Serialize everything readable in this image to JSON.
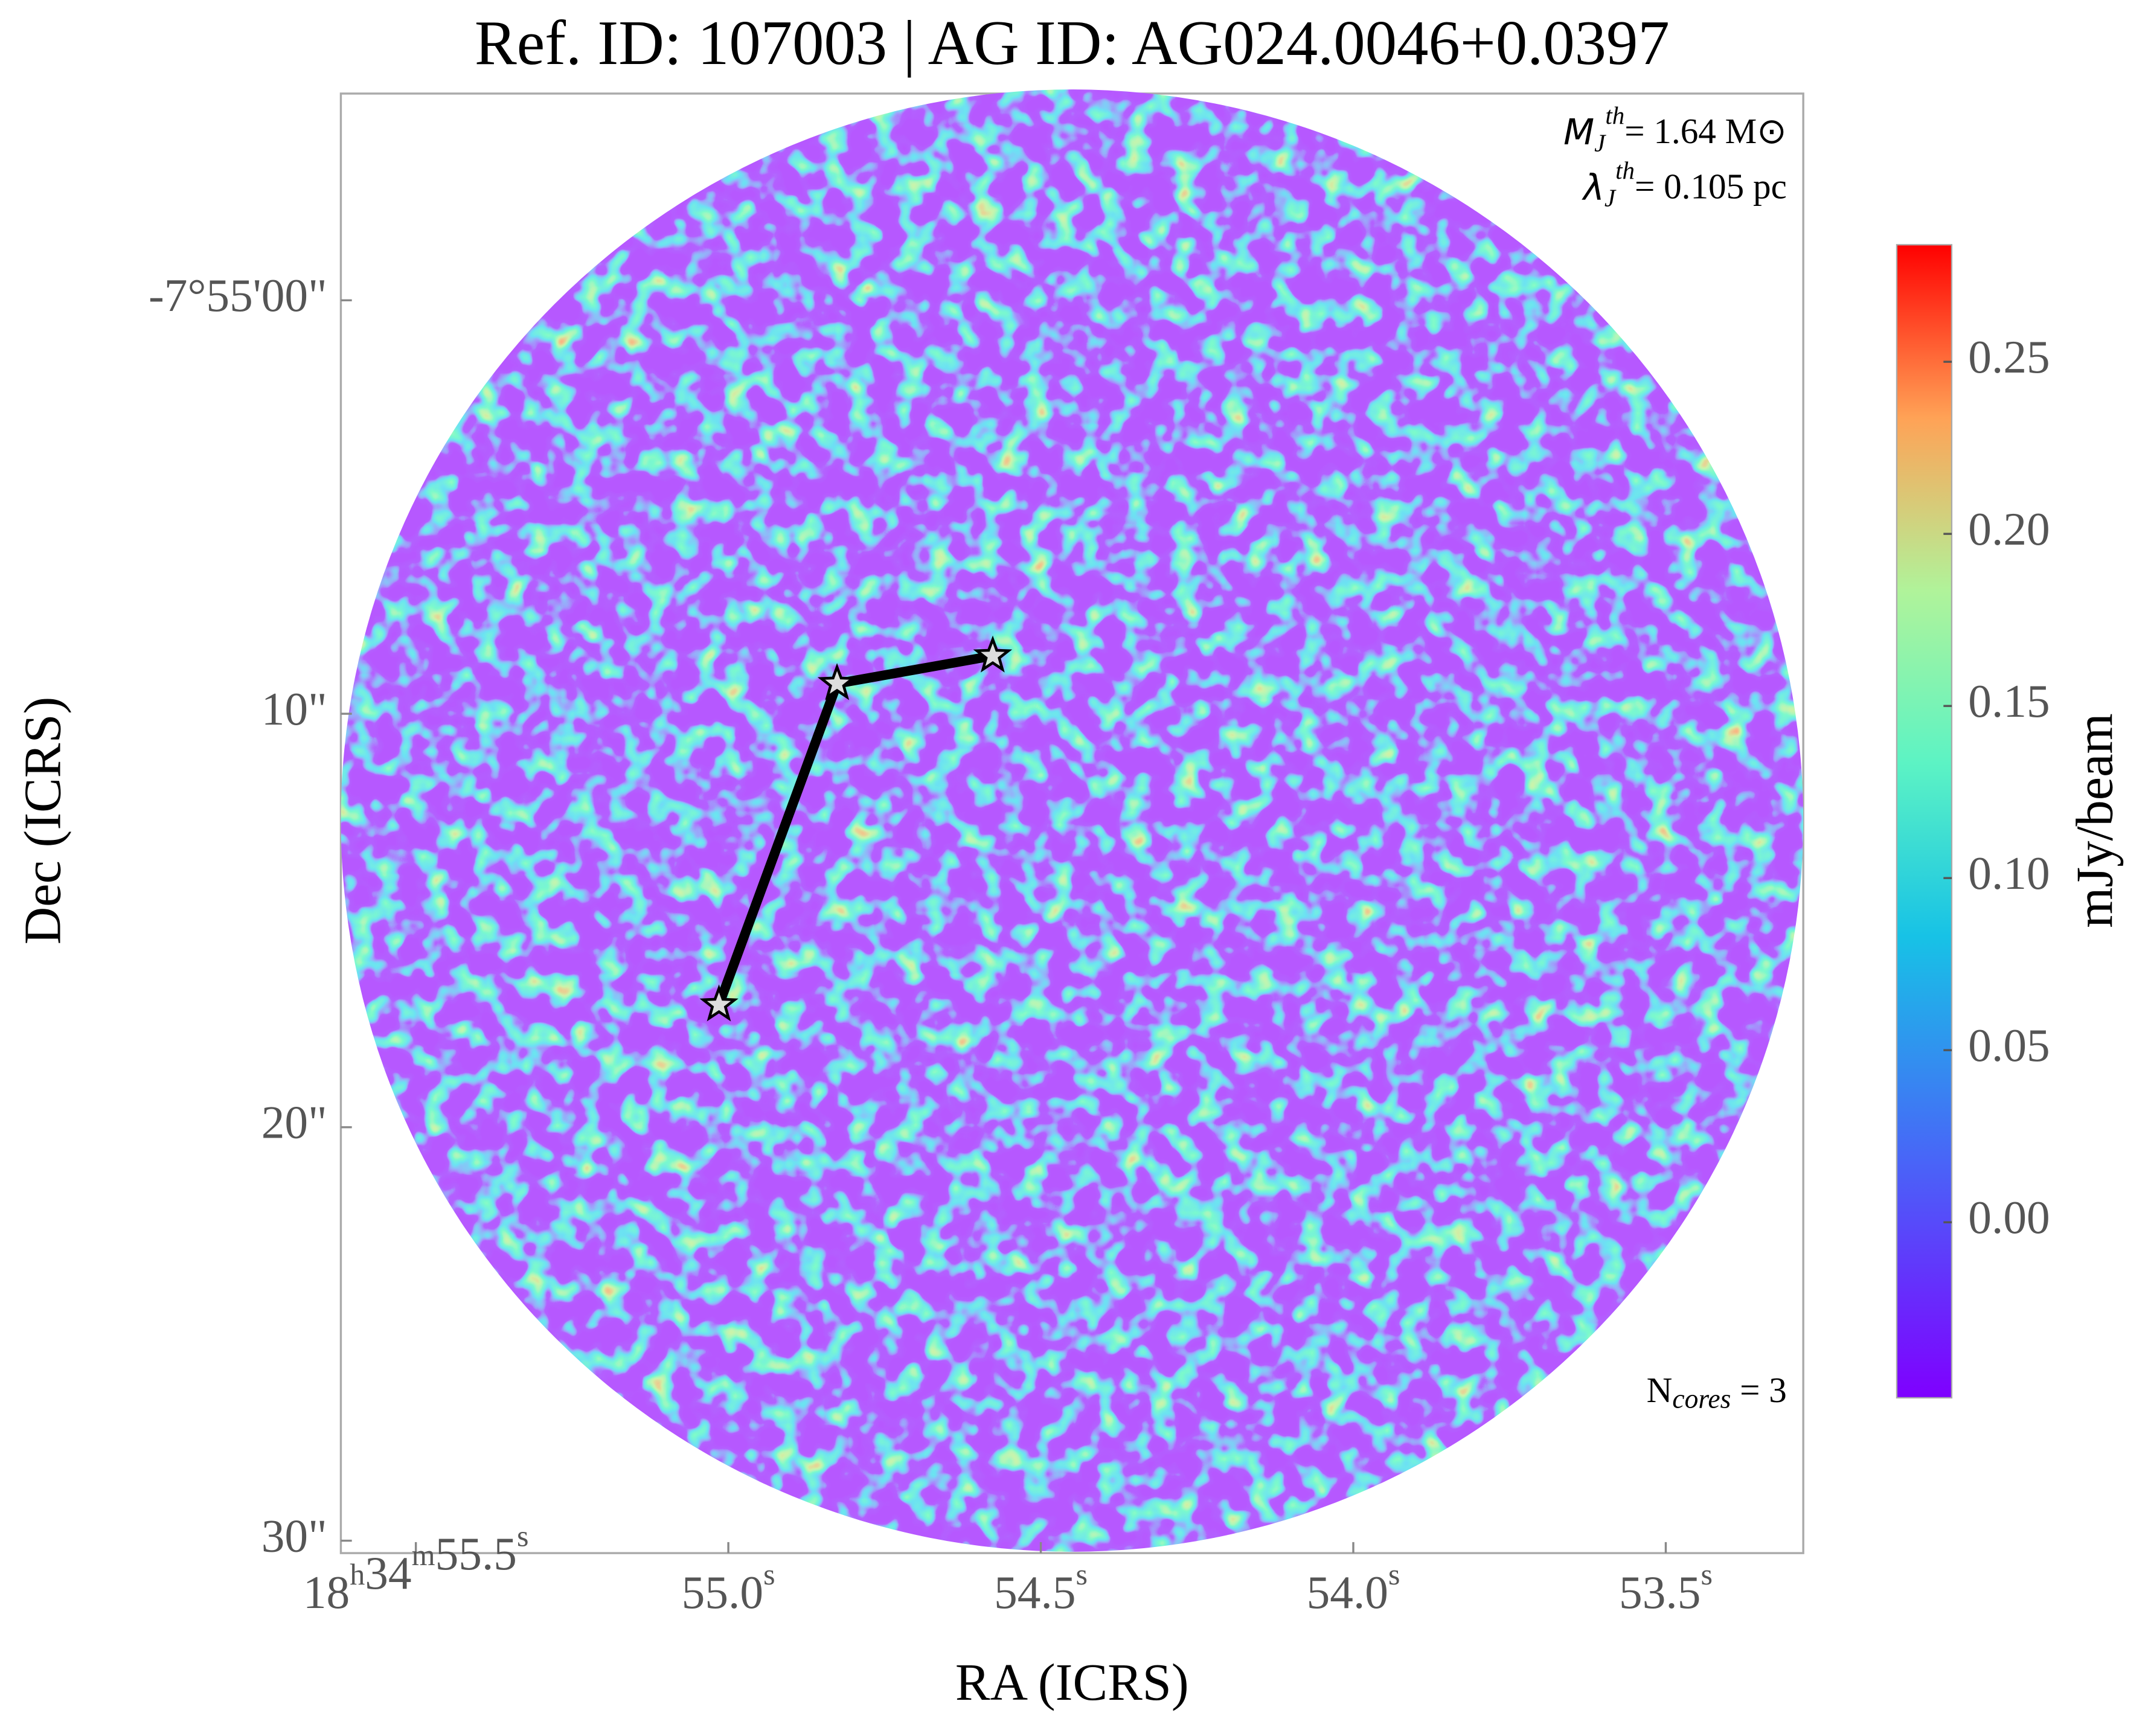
{
  "chart_data": {
    "type": "image",
    "title": "Ref. ID: 107003 | AG ID: AG024.0046+0.0397",
    "x_label": "RA (ICRS)",
    "y_label": "Dec (ICRS)",
    "xlim": [
      55.62,
      53.28
    ],
    "xticks": [
      {
        "value": 55.5,
        "label": "18h34m55.5s"
      },
      {
        "value": 55.0,
        "label": "55.0s"
      },
      {
        "value": 54.5,
        "label": "54.5s"
      },
      {
        "value": 54.0,
        "label": "54.0s"
      },
      {
        "value": 53.5,
        "label": "53.5s"
      }
    ],
    "ylim": [
      -5.0,
      30.3
    ],
    "yticks": [
      {
        "value": 0,
        "label": "-7°55'00\""
      },
      {
        "value": 10,
        "label": "10\""
      },
      {
        "value": 20,
        "label": "20\""
      },
      {
        "value": 30,
        "label": "30\""
      }
    ],
    "colormap": "rainbow",
    "colorbar": {
      "label": "mJy/beam",
      "lim": [
        -0.051,
        0.284
      ],
      "ticks": [
        {
          "value": 0,
          "label": "0.00"
        },
        {
          "value": 0.05,
          "label": "0.05"
        },
        {
          "value": 0.1,
          "label": "0.10"
        },
        {
          "value": 0.15,
          "label": "0.15"
        },
        {
          "value": 0.2,
          "label": "0.20"
        },
        {
          "value": 0.25,
          "label": "0.25"
        }
      ]
    },
    "cores": {
      "color": "#dddddd",
      "line_color": "#000000",
      "x": [
        55.015,
        54.826,
        54.577
      ],
      "values": [
        17.04,
        9.27,
        8.6
      ]
    },
    "annotations": {
      "jeans_mass": {
        "symbol": "M",
        "sub": "J",
        "sup": "th",
        "text": "= 1.64 M⊙"
      },
      "jeans_length": {
        "symbol": "λ",
        "sub": "J",
        "sup": "th",
        "text": "= 0.105 pc"
      },
      "n_cores": {
        "symbol": "N",
        "sub": "cores",
        "text": " = 3"
      }
    }
  }
}
